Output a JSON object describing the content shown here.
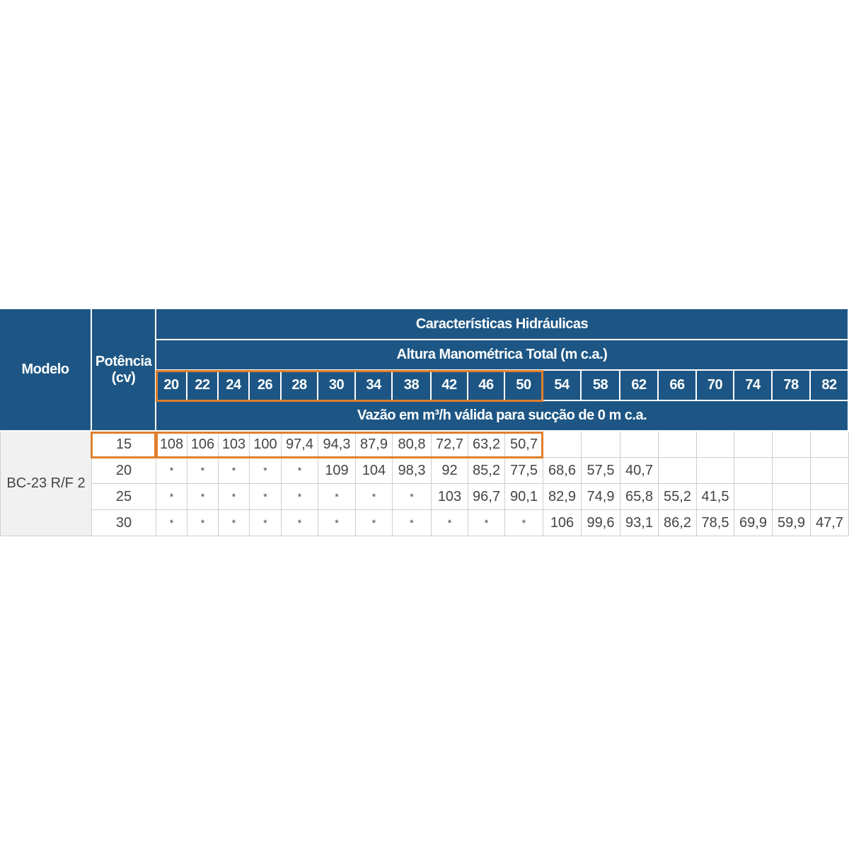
{
  "table": {
    "headers": {
      "model": "Modelo",
      "power": "Potência\n(cv)",
      "group": "Características Hidráulicas",
      "height": "Altura Manométrica Total (m c.a.)",
      "flow": "Vazão em m³/h válida para sucção de 0 m c.a."
    },
    "heights": [
      20,
      22,
      24,
      26,
      28,
      30,
      34,
      38,
      42,
      46,
      50,
      54,
      58,
      62,
      66,
      70,
      74,
      78,
      82
    ],
    "model": "BC-23 R/F 2",
    "rows": [
      {
        "power": "15",
        "flows": [
          "108",
          "106",
          "103",
          "100",
          "97,4",
          "94,3",
          "87,9",
          "80,8",
          "72,7",
          "63,2",
          "50,7",
          null,
          null,
          null,
          null,
          null,
          null,
          null,
          null
        ]
      },
      {
        "power": "20",
        "flows": [
          "*",
          "*",
          "*",
          "*",
          "*",
          "109",
          "104",
          "98,3",
          "92",
          "85,2",
          "77,5",
          "68,6",
          "57,5",
          "40,7",
          null,
          null,
          null,
          null,
          null
        ]
      },
      {
        "power": "25",
        "flows": [
          "*",
          "*",
          "*",
          "*",
          "*",
          "*",
          "*",
          "*",
          "103",
          "96,7",
          "90,1",
          "82,9",
          "74,9",
          "65,8",
          "55,2",
          "41,5",
          null,
          null,
          null
        ]
      },
      {
        "power": "30",
        "flows": [
          "*",
          "*",
          "*",
          "*",
          "*",
          "*",
          "*",
          "*",
          "*",
          "*",
          "*",
          "106",
          "99,6",
          "93,1",
          "86,2",
          "78,5",
          "69,9",
          "59,9",
          "47,7"
        ]
      }
    ]
  }
}
